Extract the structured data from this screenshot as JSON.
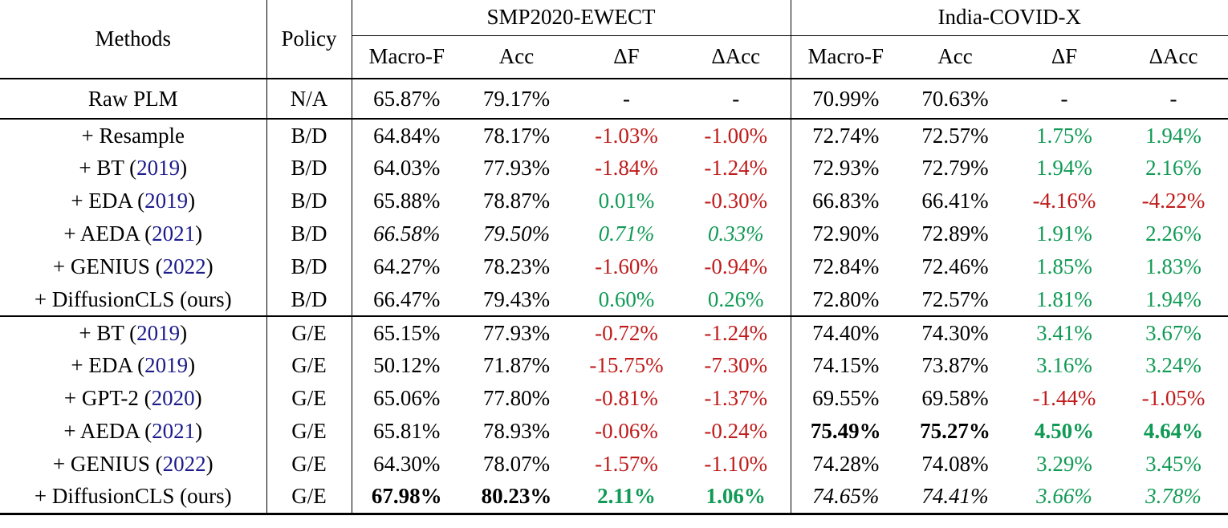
{
  "table": {
    "header": {
      "methods": "Methods",
      "policy": "Policy",
      "groups": [
        {
          "label": "SMP2020-EWECT"
        },
        {
          "label": "India-COVID-X"
        }
      ],
      "metrics": [
        "Macro-F",
        "Acc",
        "ΔF",
        "ΔAcc"
      ]
    },
    "colors": {
      "positive_delta": "#109a55",
      "negative_delta": "#c01b1b",
      "citation_year": "#1b1b8c",
      "text": "#000000"
    },
    "sections": [
      {
        "name": "baseline",
        "rows": [
          {
            "method": [
              [
                "Raw PLM",
                "k"
              ]
            ],
            "policy": "N/A",
            "cells": [
              [
                "65.87%"
              ],
              [
                "79.17%"
              ],
              [
                "-"
              ],
              [
                "-"
              ],
              [
                "70.99%"
              ],
              [
                "70.63%"
              ],
              [
                "-"
              ],
              [
                "-"
              ]
            ]
          }
        ]
      },
      {
        "name": "balance-diversity",
        "rows": [
          {
            "method": [
              [
                "+ Resample",
                "k"
              ]
            ],
            "policy": "B/D",
            "cells": [
              [
                "64.84%"
              ],
              [
                "78.17%"
              ],
              [
                "-1.03%",
                "r"
              ],
              [
                "-1.00%",
                "r"
              ],
              [
                "72.74%"
              ],
              [
                "72.57%"
              ],
              [
                "1.75%",
                "g"
              ],
              [
                "1.94%",
                "g"
              ]
            ]
          },
          {
            "method": [
              [
                "+ BT (",
                "k"
              ],
              [
                "2019",
                "c"
              ],
              [
                ")",
                "k"
              ]
            ],
            "policy": "B/D",
            "cells": [
              [
                "64.03%"
              ],
              [
                "77.93%"
              ],
              [
                "-1.84%",
                "r"
              ],
              [
                "-1.24%",
                "r"
              ],
              [
                "72.93%"
              ],
              [
                "72.79%"
              ],
              [
                "1.94%",
                "g"
              ],
              [
                "2.16%",
                "g"
              ]
            ]
          },
          {
            "method": [
              [
                "+ EDA (",
                "k"
              ],
              [
                "2019",
                "c"
              ],
              [
                ")",
                "k"
              ]
            ],
            "policy": "B/D",
            "cells": [
              [
                "65.88%"
              ],
              [
                "78.87%"
              ],
              [
                "0.01%",
                "g"
              ],
              [
                "-0.30%",
                "r"
              ],
              [
                "66.83%"
              ],
              [
                "66.41%"
              ],
              [
                "-4.16%",
                "r"
              ],
              [
                "-4.22%",
                "r"
              ]
            ]
          },
          {
            "method": [
              [
                "+ AEDA (",
                "k"
              ],
              [
                "2021",
                "c"
              ],
              [
                ")",
                "k"
              ]
            ],
            "policy": "B/D",
            "cells": [
              [
                "66.58%",
                "k",
                "i"
              ],
              [
                "79.50%",
                "k",
                "i"
              ],
              [
                "0.71%",
                "g",
                "i"
              ],
              [
                "0.33%",
                "g",
                "i"
              ],
              [
                "72.90%"
              ],
              [
                "72.89%"
              ],
              [
                "1.91%",
                "g"
              ],
              [
                "2.26%",
                "g"
              ]
            ]
          },
          {
            "method": [
              [
                "+ GENIUS (",
                "k"
              ],
              [
                "2022",
                "c"
              ],
              [
                ")",
                "k"
              ]
            ],
            "policy": "B/D",
            "cells": [
              [
                "64.27%"
              ],
              [
                "78.23%"
              ],
              [
                "-1.60%",
                "r"
              ],
              [
                "-0.94%",
                "r"
              ],
              [
                "72.84%"
              ],
              [
                "72.46%"
              ],
              [
                "1.85%",
                "g"
              ],
              [
                "1.83%",
                "g"
              ]
            ]
          },
          {
            "method": [
              [
                "+ DiffusionCLS (ours)",
                "k"
              ]
            ],
            "policy": "B/D",
            "cells": [
              [
                "66.47%"
              ],
              [
                "79.43%"
              ],
              [
                "0.60%",
                "g"
              ],
              [
                "0.26%",
                "g"
              ],
              [
                "72.80%"
              ],
              [
                "72.57%"
              ],
              [
                "1.81%",
                "g"
              ],
              [
                "1.94%",
                "g"
              ]
            ]
          }
        ]
      },
      {
        "name": "generate-exploit",
        "rows": [
          {
            "method": [
              [
                "+ BT (",
                "k"
              ],
              [
                "2019",
                "c"
              ],
              [
                ")",
                "k"
              ]
            ],
            "policy": "G/E",
            "cells": [
              [
                "65.15%"
              ],
              [
                "77.93%"
              ],
              [
                "-0.72%",
                "r"
              ],
              [
                "-1.24%",
                "r"
              ],
              [
                "74.40%"
              ],
              [
                "74.30%"
              ],
              [
                "3.41%",
                "g"
              ],
              [
                "3.67%",
                "g"
              ]
            ]
          },
          {
            "method": [
              [
                "+ EDA (",
                "k"
              ],
              [
                "2019",
                "c"
              ],
              [
                ")",
                "k"
              ]
            ],
            "policy": "G/E",
            "cells": [
              [
                "50.12%"
              ],
              [
                "71.87%"
              ],
              [
                "-15.75%",
                "r"
              ],
              [
                "-7.30%",
                "r"
              ],
              [
                "74.15%"
              ],
              [
                "73.87%"
              ],
              [
                "3.16%",
                "g"
              ],
              [
                "3.24%",
                "g"
              ]
            ]
          },
          {
            "method": [
              [
                "+ GPT-2 (",
                "k"
              ],
              [
                "2020",
                "c"
              ],
              [
                ")",
                "k"
              ]
            ],
            "policy": "G/E",
            "cells": [
              [
                "65.06%"
              ],
              [
                "77.80%"
              ],
              [
                "-0.81%",
                "r"
              ],
              [
                "-1.37%",
                "r"
              ],
              [
                "69.55%"
              ],
              [
                "69.58%"
              ],
              [
                "-1.44%",
                "r"
              ],
              [
                "-1.05%",
                "r"
              ]
            ]
          },
          {
            "method": [
              [
                "+ AEDA (",
                "k"
              ],
              [
                "2021",
                "c"
              ],
              [
                ")",
                "k"
              ]
            ],
            "policy": "G/E",
            "cells": [
              [
                "65.81%"
              ],
              [
                "78.93%"
              ],
              [
                "-0.06%",
                "r"
              ],
              [
                "-0.24%",
                "r"
              ],
              [
                "75.49%",
                "k",
                "b"
              ],
              [
                "75.27%",
                "k",
                "b"
              ],
              [
                "4.50%",
                "g",
                "b"
              ],
              [
                "4.64%",
                "g",
                "b"
              ]
            ]
          },
          {
            "method": [
              [
                "+ GENIUS (",
                "k"
              ],
              [
                "2022",
                "c"
              ],
              [
                ")",
                "k"
              ]
            ],
            "policy": "G/E",
            "cells": [
              [
                "64.30%"
              ],
              [
                "78.07%"
              ],
              [
                "-1.57%",
                "r"
              ],
              [
                "-1.10%",
                "r"
              ],
              [
                "74.28%"
              ],
              [
                "74.08%"
              ],
              [
                "3.29%",
                "g"
              ],
              [
                "3.45%",
                "g"
              ]
            ]
          },
          {
            "method": [
              [
                "+ DiffusionCLS (ours)",
                "k"
              ]
            ],
            "policy": "G/E",
            "cells": [
              [
                "67.98%",
                "k",
                "b"
              ],
              [
                "80.23%",
                "k",
                "b"
              ],
              [
                "2.11%",
                "g",
                "b"
              ],
              [
                "1.06%",
                "g",
                "b"
              ],
              [
                "74.65%",
                "k",
                "i"
              ],
              [
                "74.41%",
                "k",
                "i"
              ],
              [
                "3.66%",
                "g",
                "i"
              ],
              [
                "3.78%",
                "g",
                "i"
              ]
            ]
          }
        ]
      }
    ]
  }
}
